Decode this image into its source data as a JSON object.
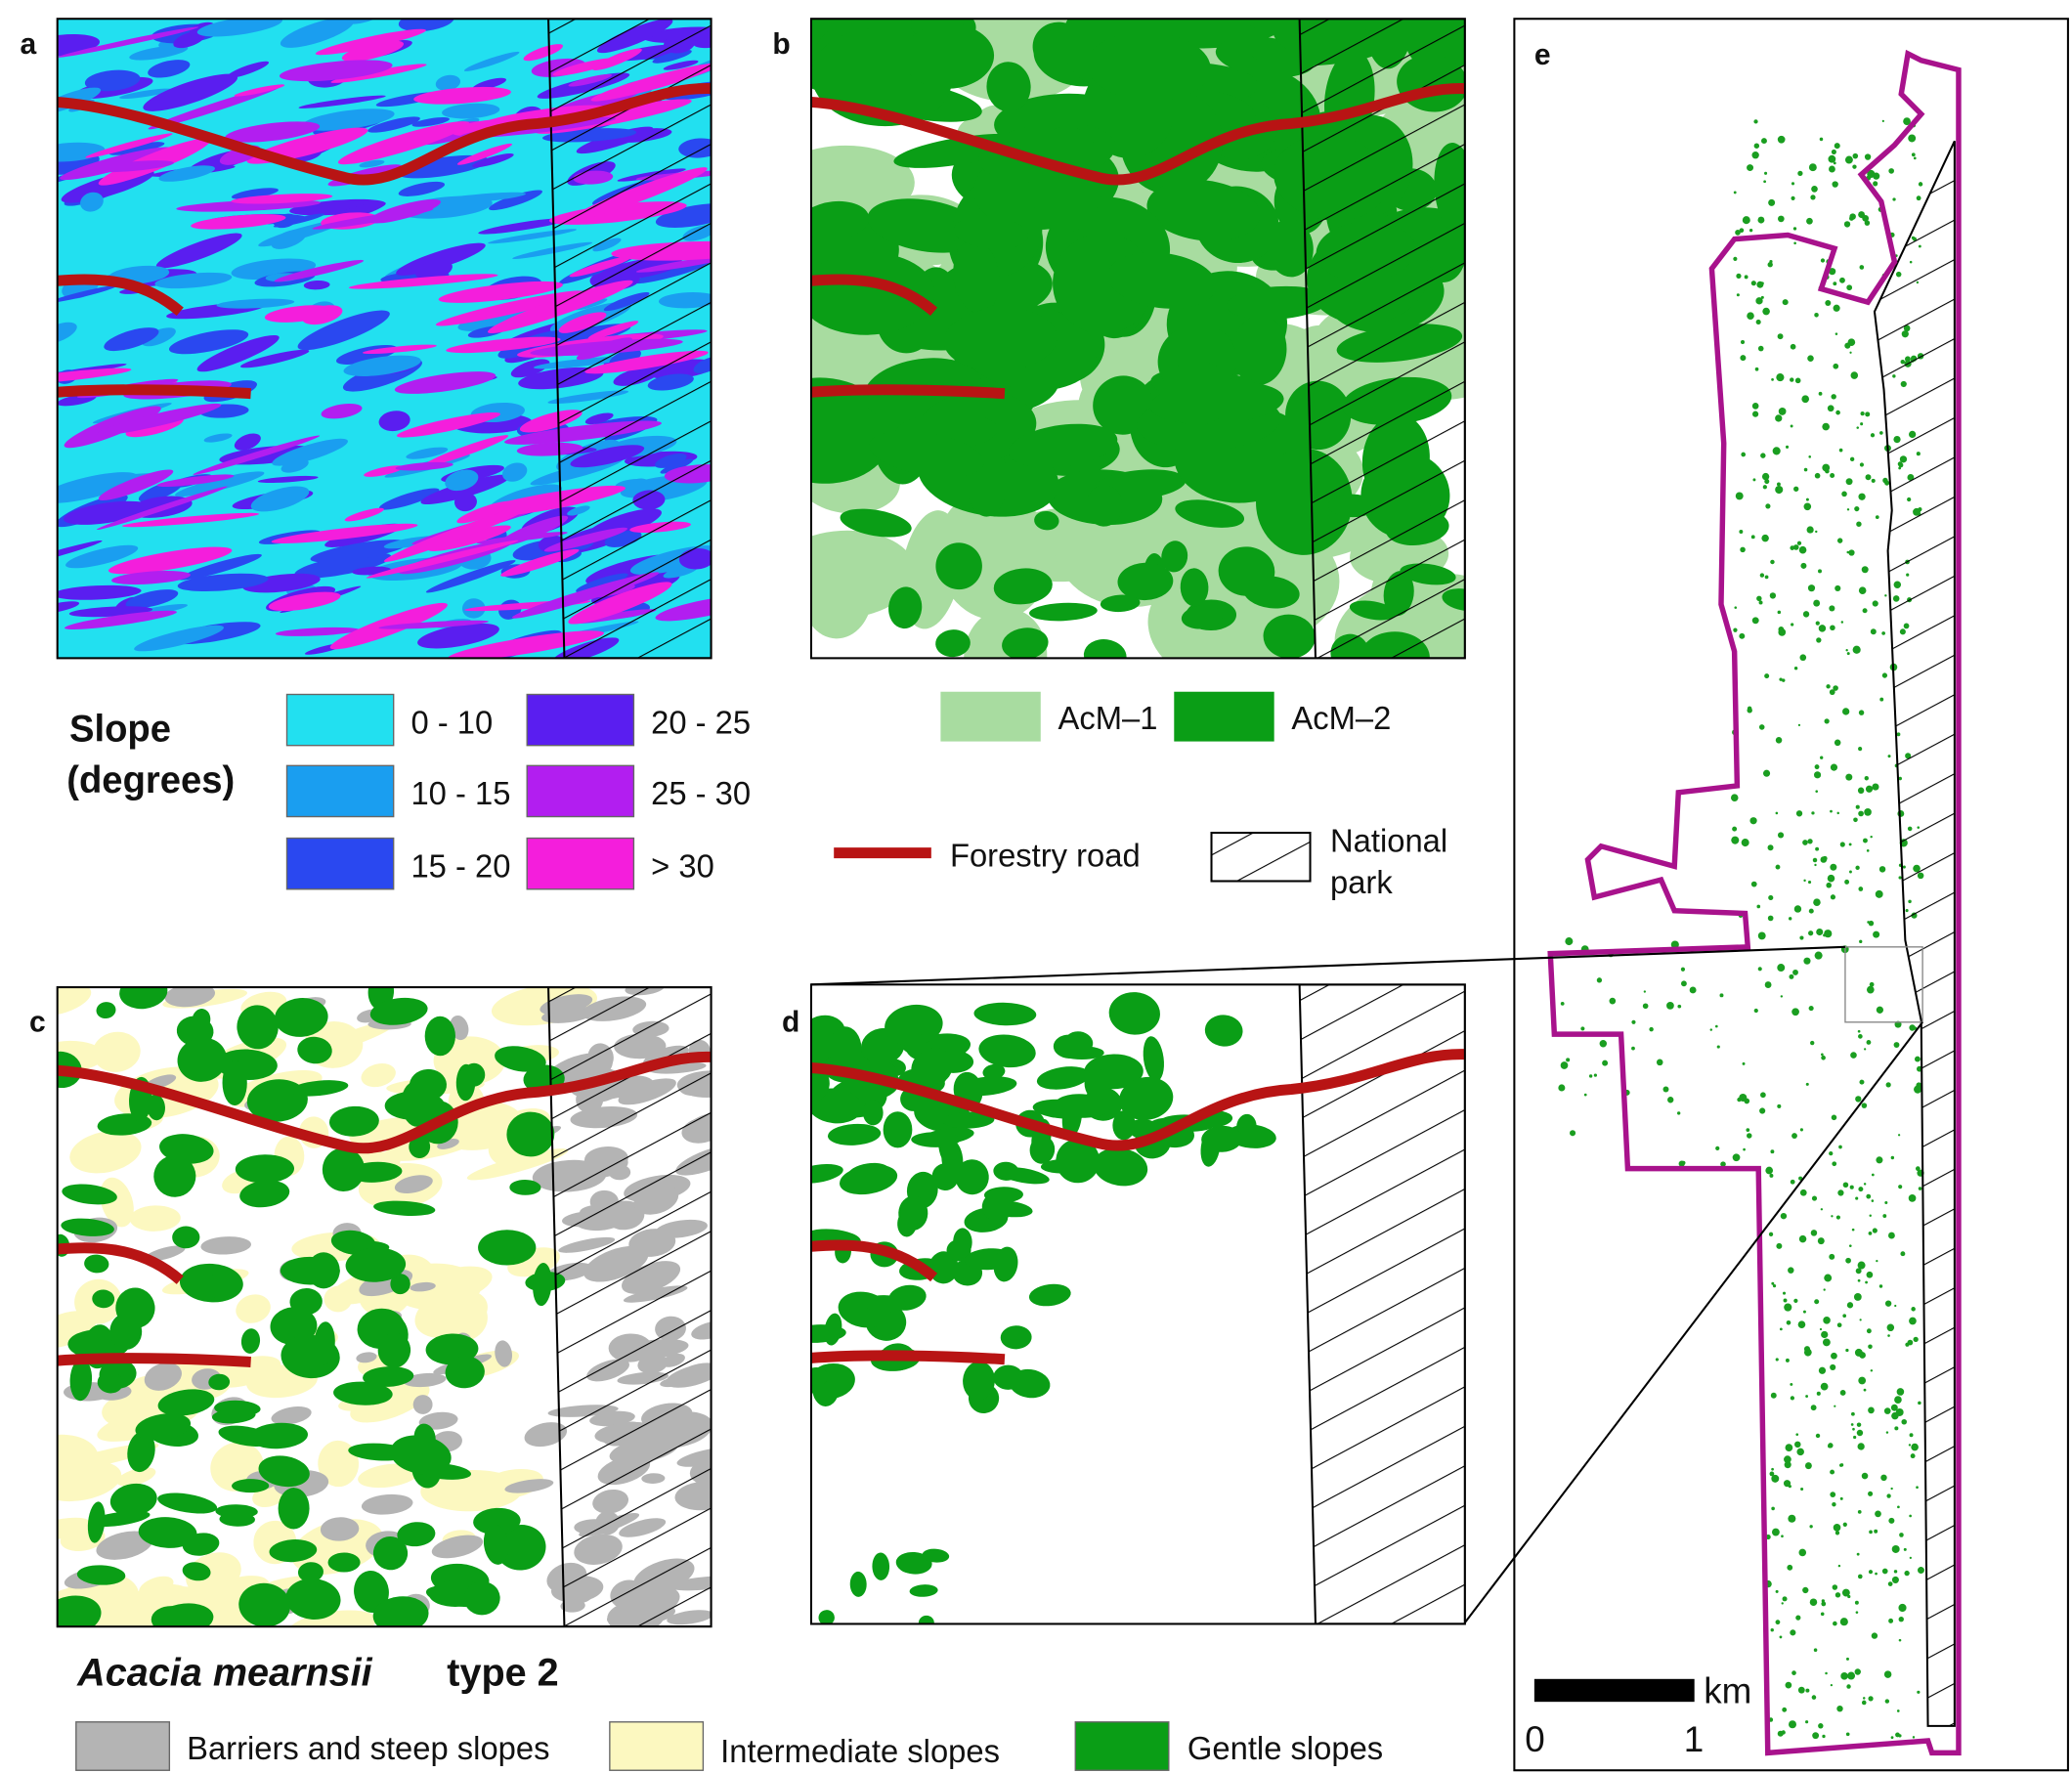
{
  "panels": {
    "a": "a",
    "b": "b",
    "c": "c",
    "d": "d",
    "e": "e"
  },
  "slope_legend": {
    "title": [
      "Slope",
      "(degrees)"
    ],
    "classes": [
      "0 - 10",
      "10 - 15",
      "15 - 20",
      "20 - 25",
      "25 - 30",
      "> 30"
    ]
  },
  "acm_legend": [
    "AcM–1",
    "AcM–2"
  ],
  "road_legend": "Forestry road",
  "park_legend": [
    "National",
    "park"
  ],
  "type_legend": {
    "species": "Acacia mearnsii",
    "type": "type 2",
    "classes": [
      "Barriers and steep slopes",
      "Intermediate slopes",
      "Gentle slopes"
    ]
  },
  "scale": {
    "unit": "km",
    "ticks": [
      "0",
      "1"
    ]
  }
}
